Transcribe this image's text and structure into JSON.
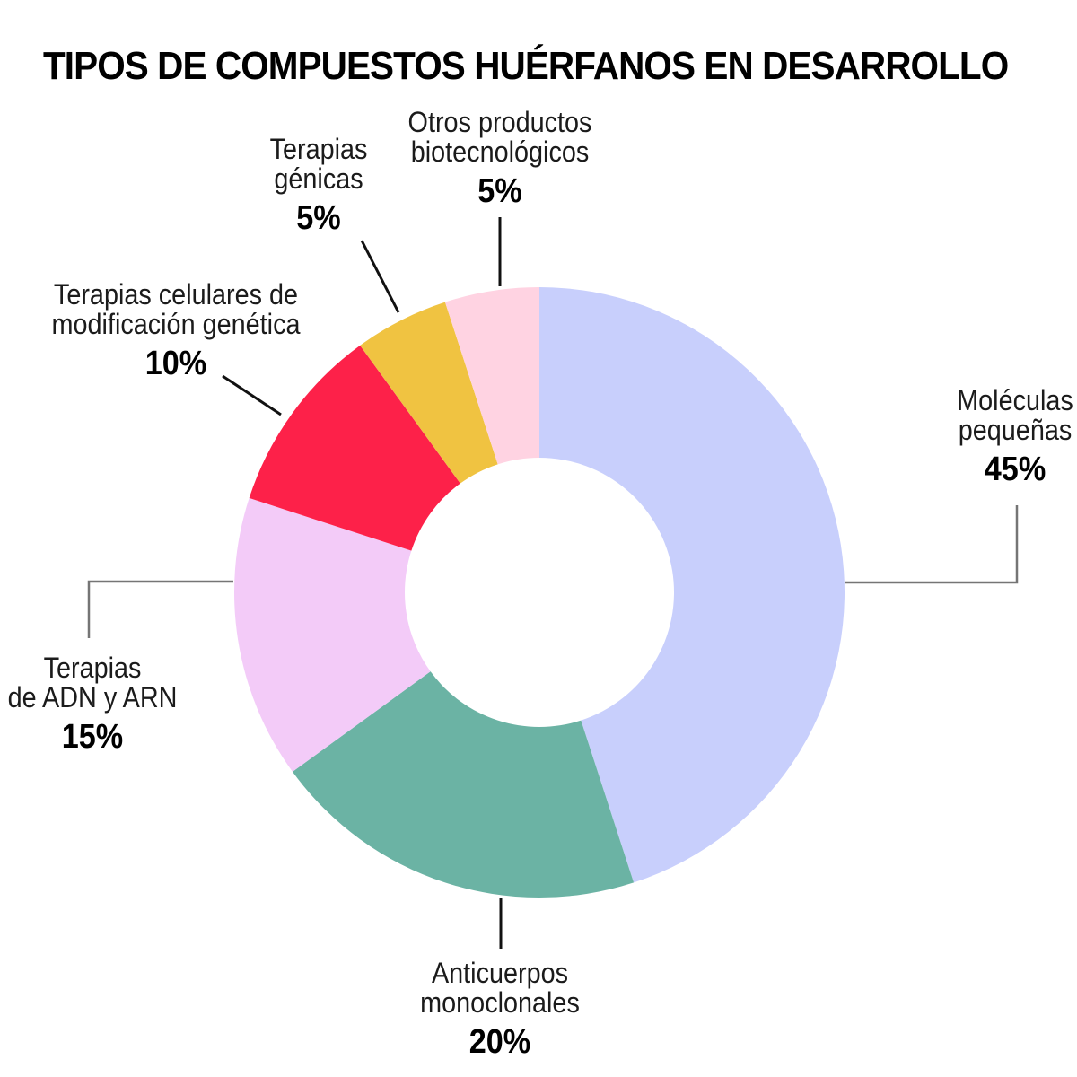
{
  "title": "TIPOS DE COMPUESTOS HUÉRFANOS EN DESARROLLO",
  "chart_data": {
    "type": "pie",
    "subtype": "donut",
    "title": "TIPOS DE COMPUESTOS HUÉRFANOS EN DESARROLLO",
    "start_angle_deg": 0,
    "direction": "clockwise",
    "start_position": "12-oclock",
    "inner_radius_ratio": 0.44,
    "unit": "%",
    "slices": [
      {
        "label": "Moléculas pequeñas",
        "value": 45,
        "color": "#c8cffc"
      },
      {
        "label": "Anticuerpos monoclonales",
        "value": 20,
        "color": "#6bb3a4"
      },
      {
        "label": "Terapias de ADN y ARN",
        "value": 15,
        "color": "#f3cbf8"
      },
      {
        "label": "Terapias celulares de modificación genética",
        "value": 10,
        "color": "#fd2149"
      },
      {
        "label": "Terapias génicas",
        "value": 5,
        "color": "#f0c341"
      },
      {
        "label": "Otros productos biotecnológicos",
        "value": 5,
        "color": "#ffd3e2"
      }
    ],
    "leader_line_colors": {
      "elbow": "#757575",
      "straight": "#111111"
    }
  },
  "labels": {
    "moleculas": {
      "line1": "Moléculas",
      "line2": "pequeñas",
      "pct": "45%"
    },
    "anticuerpos": {
      "line1": "Anticuerpos",
      "line2": "monoclonales",
      "pct": "20%"
    },
    "adn": {
      "line1": "Terapias",
      "line2": "de ADN y ARN",
      "pct": "15%"
    },
    "celulares": {
      "line1": "Terapias celulares de",
      "line2": "modificación genética",
      "pct": "10%"
    },
    "genicas": {
      "line1": "Terapias",
      "line2": "génicas",
      "pct": "5%"
    },
    "otros": {
      "line1": "Otros productos",
      "line2": "biotecnológicos",
      "pct": "5%"
    }
  }
}
